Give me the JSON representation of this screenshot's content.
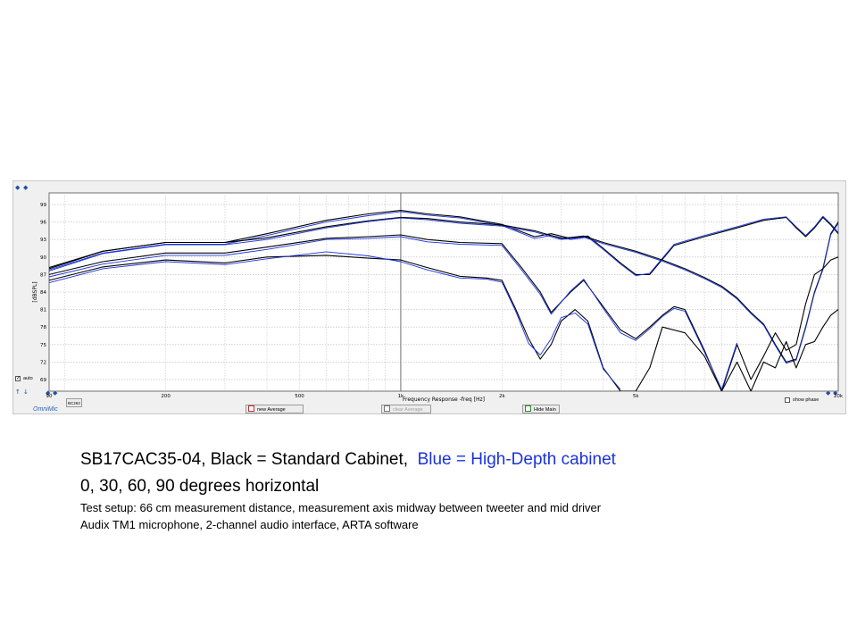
{
  "caption": {
    "line1_black": "SB17CAC35-04, Black = Standard Cabinet,",
    "line1_blue": "Blue = High-Depth cabinet",
    "line2": "0, 30, 60, 90 degrees horizontal",
    "line3": "Test setup:  66 cm measurement distance, measurement  axis midway between tweeter and mid driver",
    "line4": "Audix TM1 microphone,  2-channel audio interface, ARTA software",
    "blue_color": "#1a33dd"
  },
  "window": {
    "auto_label": "auto",
    "omni_label": "OmniMic",
    "bc_label": "BC263",
    "show_phase_label": "show phase",
    "buttons": {
      "new_average": "new Average",
      "clear_average": "clear Average",
      "hide_main": "Hide Main"
    }
  },
  "chart_data": {
    "type": "line",
    "xlabel": "Frequency Response -freq [Hz]",
    "ylabel": "[dBSPL]",
    "x_scale": "log",
    "xlim": [
      90,
      20000
    ],
    "ylim": [
      67,
      101
    ],
    "yticks": [
      69,
      72,
      75,
      78,
      81,
      84,
      87,
      90,
      93,
      96,
      99
    ],
    "x_tick_labels": [
      {
        "f": 90,
        "label": "90"
      },
      {
        "f": 200,
        "label": "200"
      },
      {
        "f": 500,
        "label": "500"
      },
      {
        "f": 1000,
        "label": "1k"
      },
      {
        "f": 2000,
        "label": "2k"
      },
      {
        "f": 5000,
        "label": "5k"
      },
      {
        "f": 20000,
        "label": "20k"
      }
    ],
    "grid": true,
    "cursor_x": 1000,
    "series_colors": {
      "black": "#000000",
      "blue": "#1a33dd"
    },
    "series": [
      {
        "color": "black",
        "points": [
          [
            90,
            88.2
          ],
          [
            130,
            91
          ],
          [
            200,
            92.5
          ],
          [
            300,
            92.5
          ],
          [
            400,
            94
          ],
          [
            600,
            96.3
          ],
          [
            800,
            97.4
          ],
          [
            1000,
            98
          ],
          [
            1200,
            97.4
          ],
          [
            1500,
            96.9
          ],
          [
            2000,
            95.6
          ],
          [
            2500,
            93.5
          ],
          [
            2800,
            94
          ],
          [
            3200,
            93.2
          ],
          [
            3600,
            93.6
          ],
          [
            4000,
            91.5
          ],
          [
            4500,
            89
          ],
          [
            5000,
            87
          ],
          [
            5500,
            87
          ],
          [
            6500,
            92
          ],
          [
            8000,
            93.5
          ],
          [
            10000,
            95
          ],
          [
            12000,
            96.3
          ],
          [
            14000,
            96.8
          ],
          [
            15000,
            95
          ],
          [
            16000,
            93.5
          ],
          [
            17000,
            95
          ],
          [
            18000,
            96.8
          ],
          [
            19000,
            95.5
          ],
          [
            20000,
            94
          ]
        ]
      },
      {
        "color": "blue",
        "points": [
          [
            90,
            87.8
          ],
          [
            130,
            90.7
          ],
          [
            200,
            92.2
          ],
          [
            300,
            92.2
          ],
          [
            400,
            93.7
          ],
          [
            600,
            96
          ],
          [
            800,
            97.1
          ],
          [
            1000,
            97.8
          ],
          [
            1200,
            97.2
          ],
          [
            1500,
            96.7
          ],
          [
            2000,
            95.4
          ],
          [
            2500,
            93.2
          ],
          [
            2800,
            93.7
          ],
          [
            3200,
            93
          ],
          [
            3600,
            93.4
          ],
          [
            4000,
            91.3
          ],
          [
            4500,
            88.8
          ],
          [
            5000,
            86.8
          ],
          [
            5500,
            87.2
          ],
          [
            6500,
            92.2
          ],
          [
            8000,
            93.7
          ],
          [
            10000,
            95.2
          ],
          [
            12000,
            96.5
          ],
          [
            14000,
            96.9
          ],
          [
            15000,
            95.2
          ],
          [
            16000,
            93.7
          ],
          [
            17000,
            95.2
          ],
          [
            18000,
            97
          ],
          [
            19000,
            95.7
          ],
          [
            20000,
            94.2
          ]
        ]
      },
      {
        "color": "black",
        "points": [
          [
            90,
            88
          ],
          [
            130,
            91
          ],
          [
            200,
            92.5
          ],
          [
            300,
            92.5
          ],
          [
            400,
            93.3
          ],
          [
            600,
            95.2
          ],
          [
            800,
            96.2
          ],
          [
            1000,
            96.8
          ],
          [
            1200,
            96.6
          ],
          [
            1500,
            96
          ],
          [
            2000,
            95.5
          ],
          [
            2500,
            94.5
          ],
          [
            3000,
            93.2
          ],
          [
            3500,
            93.6
          ],
          [
            4000,
            92.5
          ],
          [
            5000,
            91
          ],
          [
            6000,
            89.5
          ],
          [
            7000,
            88
          ],
          [
            8000,
            86.5
          ],
          [
            9000,
            85
          ],
          [
            10000,
            83
          ],
          [
            11000,
            80.5
          ],
          [
            12000,
            78.5
          ],
          [
            13000,
            75
          ],
          [
            14000,
            72
          ],
          [
            15000,
            72.5
          ],
          [
            16000,
            78
          ],
          [
            17000,
            84
          ],
          [
            18000,
            88
          ],
          [
            19000,
            94
          ],
          [
            20000,
            96
          ]
        ]
      },
      {
        "color": "blue",
        "points": [
          [
            90,
            87.6
          ],
          [
            130,
            90.6
          ],
          [
            200,
            92.1
          ],
          [
            300,
            92.1
          ],
          [
            400,
            93
          ],
          [
            600,
            95
          ],
          [
            800,
            96.1
          ],
          [
            1000,
            96.7
          ],
          [
            1200,
            96.4
          ],
          [
            1500,
            95.8
          ],
          [
            2000,
            95.3
          ],
          [
            2500,
            94.3
          ],
          [
            3000,
            93
          ],
          [
            3500,
            93.4
          ],
          [
            4000,
            92.3
          ],
          [
            5000,
            90.8
          ],
          [
            6000,
            89.3
          ],
          [
            7000,
            87.8
          ],
          [
            8000,
            86.3
          ],
          [
            9000,
            84.8
          ],
          [
            10000,
            82.8
          ],
          [
            11000,
            80.3
          ],
          [
            12000,
            78.3
          ],
          [
            13000,
            74.8
          ],
          [
            14000,
            71.8
          ],
          [
            15000,
            72.3
          ],
          [
            16000,
            77.8
          ],
          [
            17000,
            83.8
          ],
          [
            18000,
            87.8
          ],
          [
            19000,
            93.8
          ],
          [
            20000,
            95.8
          ]
        ]
      },
      {
        "color": "black",
        "points": [
          [
            90,
            87
          ],
          [
            130,
            89.2
          ],
          [
            200,
            90.7
          ],
          [
            300,
            90.7
          ],
          [
            400,
            91.7
          ],
          [
            600,
            93.2
          ],
          [
            800,
            93.5
          ],
          [
            1000,
            93.8
          ],
          [
            1200,
            93
          ],
          [
            1500,
            92.5
          ],
          [
            2000,
            92.3
          ],
          [
            2300,
            88
          ],
          [
            2600,
            84
          ],
          [
            2800,
            80.5
          ],
          [
            3200,
            84
          ],
          [
            3500,
            86
          ],
          [
            4000,
            81.5
          ],
          [
            4500,
            77.5
          ],
          [
            5000,
            76
          ],
          [
            5500,
            78
          ],
          [
            6000,
            80
          ],
          [
            6500,
            81.5
          ],
          [
            7000,
            81
          ],
          [
            8000,
            74
          ],
          [
            9000,
            67
          ],
          [
            10000,
            75
          ],
          [
            11000,
            69
          ],
          [
            12000,
            73
          ],
          [
            13000,
            77
          ],
          [
            14000,
            74
          ],
          [
            15000,
            75
          ],
          [
            16000,
            82
          ],
          [
            17000,
            87
          ],
          [
            18000,
            88
          ],
          [
            19000,
            89.5
          ],
          [
            20000,
            90
          ]
        ]
      },
      {
        "color": "blue",
        "points": [
          [
            90,
            86.6
          ],
          [
            130,
            88.8
          ],
          [
            200,
            90.3
          ],
          [
            300,
            90.3
          ],
          [
            400,
            91.3
          ],
          [
            600,
            93
          ],
          [
            800,
            93.2
          ],
          [
            1000,
            93.5
          ],
          [
            1200,
            92.6
          ],
          [
            1500,
            92.2
          ],
          [
            2000,
            92
          ],
          [
            2300,
            87.6
          ],
          [
            2600,
            83.6
          ],
          [
            2800,
            80.2
          ],
          [
            3200,
            84.2
          ],
          [
            3500,
            86.2
          ],
          [
            4000,
            81.2
          ],
          [
            4500,
            77
          ],
          [
            5000,
            75.7
          ],
          [
            5500,
            77.7
          ],
          [
            6000,
            79.8
          ],
          [
            6500,
            81.2
          ],
          [
            7000,
            80.7
          ],
          [
            8000,
            73.7
          ],
          [
            9000,
            67.3
          ],
          [
            10000,
            75.3
          ]
        ]
      },
      {
        "color": "black",
        "points": [
          [
            90,
            86
          ],
          [
            130,
            88.3
          ],
          [
            200,
            89.5
          ],
          [
            300,
            89
          ],
          [
            400,
            90
          ],
          [
            600,
            90.3
          ],
          [
            800,
            89.8
          ],
          [
            1000,
            89.5
          ],
          [
            1200,
            88.2
          ],
          [
            1500,
            86.7
          ],
          [
            1800,
            86.4
          ],
          [
            2000,
            86
          ],
          [
            2200,
            81
          ],
          [
            2400,
            76
          ],
          [
            2600,
            72.5
          ],
          [
            2800,
            75
          ],
          [
            3000,
            79
          ],
          [
            3300,
            81
          ],
          [
            3600,
            79
          ],
          [
            4000,
            71
          ],
          [
            4500,
            67
          ],
          [
            5000,
            67
          ],
          [
            5500,
            71
          ],
          [
            6000,
            78
          ],
          [
            7000,
            77
          ],
          [
            8000,
            73
          ],
          [
            9000,
            67
          ],
          [
            10000,
            72
          ],
          [
            11000,
            67
          ],
          [
            12000,
            72
          ],
          [
            13000,
            71
          ],
          [
            14000,
            75.5
          ],
          [
            15000,
            71
          ],
          [
            16000,
            75
          ],
          [
            17000,
            75.5
          ],
          [
            18000,
            78
          ],
          [
            19000,
            80
          ],
          [
            20000,
            81
          ]
        ]
      },
      {
        "color": "blue",
        "points": [
          [
            90,
            85.6
          ],
          [
            130,
            88
          ],
          [
            200,
            89.2
          ],
          [
            300,
            88.7
          ],
          [
            400,
            89.7
          ],
          [
            600,
            90.9
          ],
          [
            800,
            90.2
          ],
          [
            1000,
            89.2
          ],
          [
            1200,
            87.8
          ],
          [
            1500,
            86.4
          ],
          [
            1800,
            86.2
          ],
          [
            2000,
            85.7
          ],
          [
            2200,
            80.6
          ],
          [
            2400,
            75.2
          ],
          [
            2600,
            73.2
          ],
          [
            2800,
            76
          ],
          [
            3000,
            79.6
          ],
          [
            3300,
            80.4
          ],
          [
            3600,
            78.5
          ],
          [
            4000,
            70.8
          ],
          [
            4500,
            67.3
          ]
        ]
      }
    ]
  }
}
